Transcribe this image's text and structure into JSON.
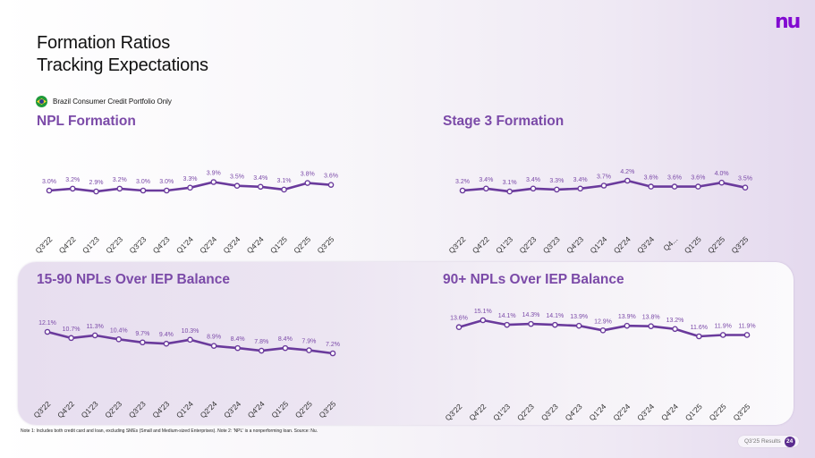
{
  "header": {
    "title_line1": "Formation Ratios",
    "title_line2": "Tracking Expectations",
    "logo": "nu",
    "subtitle": "Brazil Consumer Credit Portfolio Only",
    "flag_icon": "brazil-flag-icon"
  },
  "colors": {
    "accent": "#7b4aa8",
    "line": "#6a3a9c",
    "logo": "#820ad1",
    "badge": "#5b2c8f"
  },
  "footer": {
    "footnote": "Note 1: Includes both credit card and loan, excluding SMEs (Small and Medium-sized Enterprises). Note 2: 'NPL' is a nonperforming loan. Source: Nu.",
    "page_label": "Q3'25 Results",
    "page_number": "24"
  },
  "chart_data": [
    {
      "id": "npl-formation",
      "type": "line",
      "title": "NPL Formation",
      "categories": [
        "Q3'22",
        "Q4'22",
        "Q1'23",
        "Q2'23",
        "Q3'23",
        "Q4'23",
        "Q1'24",
        "Q2'24",
        "Q3'24",
        "Q4'24",
        "Q1'25",
        "Q2'25",
        "Q3'25"
      ],
      "values": [
        3.0,
        3.2,
        2.9,
        3.2,
        3.0,
        3.0,
        3.3,
        3.9,
        3.5,
        3.4,
        3.1,
        3.8,
        3.6
      ],
      "labels": [
        "3.0%",
        "3.2%",
        "2.9%",
        "3.2%",
        "3.0%",
        "3.0%",
        "3.3%",
        "3.9%",
        "3.5%",
        "3.4%",
        "3.1%",
        "3.8%",
        "3.6%"
      ],
      "unit": "%",
      "xlabel": "",
      "ylabel": "",
      "grid": false
    },
    {
      "id": "stage3-formation",
      "type": "line",
      "title": "Stage 3 Formation",
      "categories": [
        "Q3'22",
        "Q4'22",
        "Q1'23",
        "Q2'23",
        "Q3'23",
        "Q4'23",
        "Q1'24",
        "Q2'24",
        "Q3'24",
        "Q4...",
        "Q1'25",
        "Q2'25",
        "Q3'25"
      ],
      "values": [
        3.2,
        3.4,
        3.1,
        3.4,
        3.3,
        3.4,
        3.7,
        4.2,
        3.6,
        3.6,
        3.6,
        4.0,
        3.5
      ],
      "labels": [
        "3.2%",
        "3.4%",
        "3.1%",
        "3.4%",
        "3.3%",
        "3.4%",
        "3.7%",
        "4.2%",
        "3.6%",
        "3.6%",
        "3.6%",
        "4.0%",
        "3.5%"
      ],
      "unit": "%",
      "xlabel": "",
      "ylabel": "",
      "grid": false
    },
    {
      "id": "npl-15-90",
      "type": "line",
      "title": "15-90 NPLs Over IEP Balance",
      "categories": [
        "Q3'22",
        "Q4'22",
        "Q1'23",
        "Q2'23",
        "Q3'23",
        "Q4'23",
        "Q1'24",
        "Q2'24",
        "Q3'24",
        "Q4'24",
        "Q1'25",
        "Q2'25",
        "Q3'25"
      ],
      "values": [
        12.1,
        10.7,
        11.3,
        10.4,
        9.7,
        9.4,
        10.3,
        8.9,
        8.4,
        7.8,
        8.4,
        7.9,
        7.2
      ],
      "labels": [
        "12.1%",
        "10.7%",
        "11.3%",
        "10.4%",
        "9.7%",
        "9.4%",
        "10.3%",
        "8.9%",
        "8.4%",
        "7.8%",
        "8.4%",
        "7.9%",
        "7.2%"
      ],
      "unit": "%",
      "xlabel": "",
      "ylabel": "",
      "grid": false
    },
    {
      "id": "npl-90-plus",
      "type": "line",
      "title": "90+ NPLs Over IEP Balance",
      "categories": [
        "Q3'22",
        "Q4'22",
        "Q1'23",
        "Q2'23",
        "Q3'23",
        "Q4'23",
        "Q1'24",
        "Q2'24",
        "Q3'24",
        "Q4'24",
        "Q1'25",
        "Q2'25",
        "Q3'25"
      ],
      "values": [
        13.6,
        15.1,
        14.1,
        14.3,
        14.1,
        13.9,
        12.9,
        13.9,
        13.8,
        13.2,
        11.6,
        11.9,
        11.9
      ],
      "labels": [
        "13.6%",
        "15.1%",
        "14.1%",
        "14.3%",
        "14.1%",
        "13.9%",
        "12.9%",
        "13.9%",
        "13.8%",
        "13.2%",
        "11.6%",
        "11.9%",
        "11.9%"
      ],
      "unit": "%",
      "xlabel": "",
      "ylabel": "",
      "grid": false
    }
  ]
}
